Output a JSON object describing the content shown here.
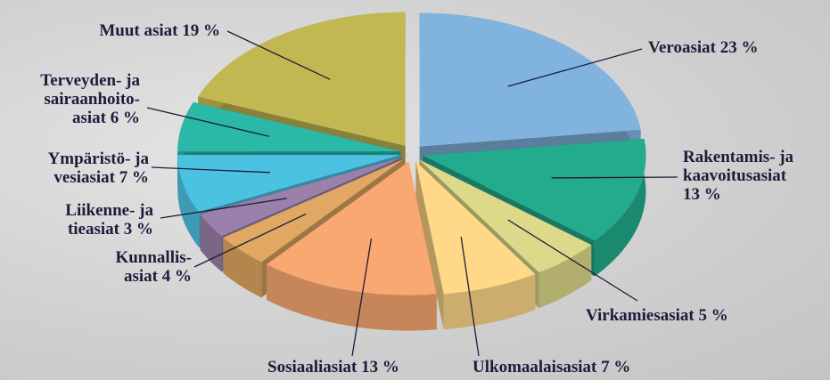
{
  "chart_data": {
    "type": "pie",
    "categories": [
      "Veroasiat",
      "Rakentamis- ja\nkaavoitusasiat\n",
      "Virkamiesasiat",
      "Ulkomaalaisasiat",
      "Sosiaaliasiat",
      "Kunnallis-\nasiat",
      "Liikenne- ja\ntieasiat",
      "Ympäristö- ja\nvesiasiat",
      "Terveyden- ja\nsairaanhoito-\nasiat",
      "Muut asiat"
    ],
    "values": [
      23,
      13,
      5,
      7,
      13,
      4,
      3,
      7,
      6,
      19
    ],
    "value_labels": [
      "23 %",
      "13 %",
      "5 %",
      "7 %",
      "13 %",
      "4 %",
      "3 %",
      "7 %",
      "6 %",
      "19 %"
    ],
    "colors": [
      "#80b4de",
      "#22ab8c",
      "#ddd98a",
      "#ffd888",
      "#f8a870",
      "#e0a862",
      "#9a80aa",
      "#4cc2e2",
      "#2ab8a8",
      "#c2b852"
    ]
  }
}
